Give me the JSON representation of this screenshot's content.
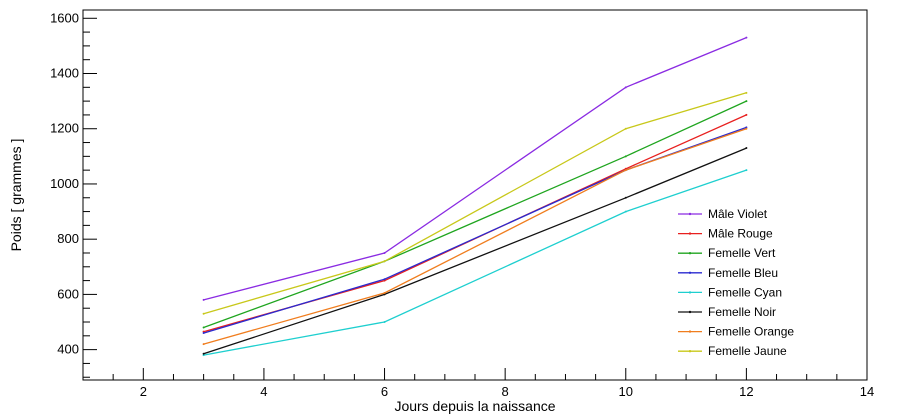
{
  "chart_data": {
    "type": "line",
    "title": "",
    "xlabel": "Jours depuis la naissance",
    "ylabel": "Poids [ grammes ]",
    "xlim": [
      1,
      14
    ],
    "ylim": [
      290,
      1630
    ],
    "xticks": [
      2,
      4,
      6,
      8,
      10,
      12,
      14
    ],
    "yticks": [
      400,
      600,
      800,
      1000,
      1200,
      1400,
      1600
    ],
    "grid": false,
    "legend_position": "center-right",
    "x": [
      3,
      6,
      10,
      12
    ],
    "series": [
      {
        "name": "Mâle Violet",
        "color": "#8a2be2",
        "values": [
          580,
          750,
          1350,
          1530
        ]
      },
      {
        "name": "Mâle Rouge",
        "color": "#e8201f",
        "values": [
          465,
          650,
          1055,
          1250
        ]
      },
      {
        "name": "Femelle Vert",
        "color": "#1fa51f",
        "values": [
          480,
          720,
          1100,
          1300
        ]
      },
      {
        "name": "Femelle Bleu",
        "color": "#2a2ad0",
        "values": [
          460,
          655,
          1050,
          1205
        ]
      },
      {
        "name": "Femelle Cyan",
        "color": "#1ecfcf",
        "values": [
          380,
          500,
          900,
          1050
        ]
      },
      {
        "name": "Femelle Noir",
        "color": "#111111",
        "values": [
          385,
          600,
          950,
          1130
        ]
      },
      {
        "name": "Femelle Orange",
        "color": "#f07d1e",
        "values": [
          420,
          605,
          1050,
          1200
        ]
      },
      {
        "name": "Femelle Jaune",
        "color": "#c8c81a",
        "values": [
          530,
          720,
          1200,
          1330
        ]
      }
    ]
  }
}
